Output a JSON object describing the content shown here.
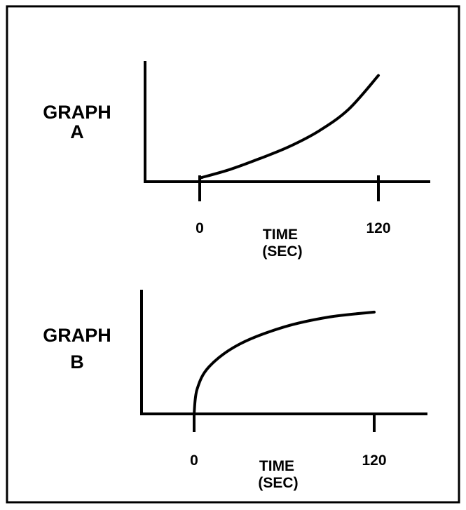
{
  "chart_data": [
    {
      "type": "line",
      "title_lines": [
        "GRAPH",
        "A"
      ],
      "xlabel_lines": [
        "TIME",
        "(SEC)"
      ],
      "ylabel": "",
      "x_ticks": [
        0,
        120
      ],
      "x_tick_labels": [
        "0",
        "120"
      ],
      "series": [
        {
          "x": [
            0,
            20,
            40,
            60,
            80,
            100,
            120
          ],
          "y": [
            0.03,
            0.1,
            0.19,
            0.29,
            0.42,
            0.6,
            0.88
          ]
        }
      ],
      "curve_shape": "increasing-convex"
    },
    {
      "type": "line",
      "title_lines": [
        "GRAPH",
        "B"
      ],
      "xlabel_lines": [
        "TIME",
        "(SEC)"
      ],
      "ylabel": "",
      "x_ticks": [
        0,
        120
      ],
      "x_tick_labels": [
        "0",
        "120"
      ],
      "series": [
        {
          "x": [
            0,
            2,
            10,
            30,
            60,
            90,
            120
          ],
          "y": [
            0.0,
            0.2,
            0.38,
            0.56,
            0.7,
            0.78,
            0.82
          ]
        }
      ],
      "curve_shape": "increasing-concave"
    }
  ]
}
